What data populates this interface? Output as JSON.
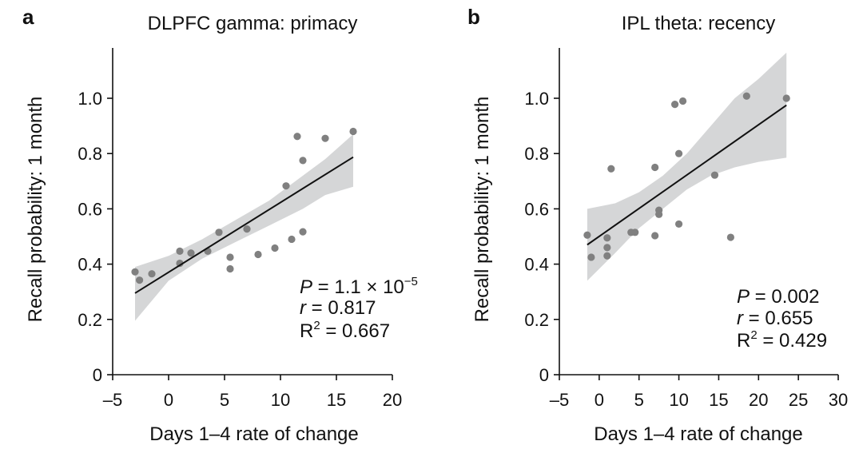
{
  "chart_data": [
    {
      "panel_letter": "a",
      "type": "scatter",
      "title": "DLPFC gamma: primacy",
      "xlabel": "Days 1–4 rate of change",
      "ylabel": "Recall probability: 1 month",
      "xlim": [
        -5,
        20
      ],
      "ylim": [
        0,
        1.15
      ],
      "x_ticks": [
        -5,
        0,
        5,
        10,
        15,
        20
      ],
      "x_tick_labels": [
        "–5",
        "0",
        "5",
        "10",
        "15",
        "20"
      ],
      "y_ticks": [
        0,
        0.2,
        0.4,
        0.6,
        0.8,
        1.0
      ],
      "y_tick_labels": [
        "0",
        "0.2",
        "0.4",
        "0.6",
        "0.8",
        "1.0"
      ],
      "points": [
        {
          "x": -3.0,
          "y": 0.372
        },
        {
          "x": -2.6,
          "y": 0.342
        },
        {
          "x": -1.5,
          "y": 0.365
        },
        {
          "x": 1.0,
          "y": 0.447
        },
        {
          "x": 1.0,
          "y": 0.403
        },
        {
          "x": 2.0,
          "y": 0.44
        },
        {
          "x": 3.5,
          "y": 0.447
        },
        {
          "x": 4.5,
          "y": 0.515
        },
        {
          "x": 5.5,
          "y": 0.425
        },
        {
          "x": 5.5,
          "y": 0.383
        },
        {
          "x": 7.0,
          "y": 0.527
        },
        {
          "x": 8.0,
          "y": 0.435
        },
        {
          "x": 9.5,
          "y": 0.458
        },
        {
          "x": 10.5,
          "y": 0.683
        },
        {
          "x": 11.0,
          "y": 0.49
        },
        {
          "x": 11.5,
          "y": 0.862
        },
        {
          "x": 12.0,
          "y": 0.775
        },
        {
          "x": 12.0,
          "y": 0.517
        },
        {
          "x": 14.0,
          "y": 0.855
        },
        {
          "x": 16.5,
          "y": 0.88
        }
      ],
      "fit": {
        "x": [
          -3.0,
          16.5
        ],
        "y": [
          0.295,
          0.787
        ]
      },
      "ci_band": {
        "upper": [
          [
            -3.0,
            0.39
          ],
          [
            0,
            0.43
          ],
          [
            3,
            0.49
          ],
          [
            6,
            0.56
          ],
          [
            9,
            0.63
          ],
          [
            12,
            0.72
          ],
          [
            14,
            0.78
          ],
          [
            16.5,
            0.87
          ]
        ],
        "lower": [
          [
            -3.0,
            0.195
          ],
          [
            0,
            0.34
          ],
          [
            3,
            0.42
          ],
          [
            6,
            0.48
          ],
          [
            9,
            0.54
          ],
          [
            12,
            0.6
          ],
          [
            14,
            0.65
          ],
          [
            16.5,
            0.68
          ]
        ]
      },
      "stats": {
        "p_value": "P = 1.1 × 10",
        "p_exponent": "−5",
        "r": "r = 0.817",
        "r2_prefix": "R",
        "r2_sup": "2",
        "r2_value": " = 0.667"
      }
    },
    {
      "panel_letter": "b",
      "type": "scatter",
      "title": "IPL theta: recency",
      "xlabel": "Days 1–4 rate of change",
      "ylabel": "Recall probability: 1 month",
      "xlim": [
        -5,
        30
      ],
      "ylim": [
        0,
        1.15
      ],
      "x_ticks": [
        -5,
        0,
        5,
        10,
        15,
        20,
        25,
        30
      ],
      "x_tick_labels": [
        "–5",
        "0",
        "5",
        "10",
        "15",
        "20",
        "25",
        "30"
      ],
      "y_ticks": [
        0,
        0.2,
        0.4,
        0.6,
        0.8,
        1.0
      ],
      "y_tick_labels": [
        "0",
        "0.2",
        "0.4",
        "0.6",
        "0.8",
        "1.0"
      ],
      "points": [
        {
          "x": -1.5,
          "y": 0.505
        },
        {
          "x": -1.0,
          "y": 0.425
        },
        {
          "x": 1.0,
          "y": 0.495
        },
        {
          "x": 1.0,
          "y": 0.46
        },
        {
          "x": 1.0,
          "y": 0.43
        },
        {
          "x": 1.5,
          "y": 0.745
        },
        {
          "x": 4.5,
          "y": 0.515
        },
        {
          "x": 4.0,
          "y": 0.515
        },
        {
          "x": 7.0,
          "y": 0.75
        },
        {
          "x": 7.0,
          "y": 0.503
        },
        {
          "x": 7.5,
          "y": 0.595
        },
        {
          "x": 7.5,
          "y": 0.58
        },
        {
          "x": 9.5,
          "y": 0.978
        },
        {
          "x": 10.0,
          "y": 0.8
        },
        {
          "x": 10.5,
          "y": 0.99
        },
        {
          "x": 10.0,
          "y": 0.545
        },
        {
          "x": 14.5,
          "y": 0.722
        },
        {
          "x": 16.5,
          "y": 0.497
        },
        {
          "x": 18.5,
          "y": 1.008
        },
        {
          "x": 23.5,
          "y": 1.0
        }
      ],
      "fit": {
        "x": [
          -1.5,
          23.5
        ],
        "y": [
          0.47,
          0.975
        ]
      },
      "ci_band": {
        "upper": [
          [
            -1.5,
            0.6
          ],
          [
            2,
            0.62
          ],
          [
            5,
            0.66
          ],
          [
            8,
            0.72
          ],
          [
            11,
            0.8
          ],
          [
            14,
            0.9
          ],
          [
            17,
            1.0
          ],
          [
            20,
            1.07
          ],
          [
            23.5,
            1.165
          ]
        ],
        "lower": [
          [
            -1.5,
            0.34
          ],
          [
            2,
            0.44
          ],
          [
            5,
            0.53
          ],
          [
            8,
            0.6
          ],
          [
            11,
            0.67
          ],
          [
            14,
            0.72
          ],
          [
            17,
            0.75
          ],
          [
            20,
            0.77
          ],
          [
            23.5,
            0.785
          ]
        ]
      },
      "stats": {
        "p_value": "P = 0.002",
        "r": "r = 0.655",
        "r2_prefix": "R",
        "r2_sup": "2",
        "r2_value": " = 0.429"
      }
    }
  ]
}
